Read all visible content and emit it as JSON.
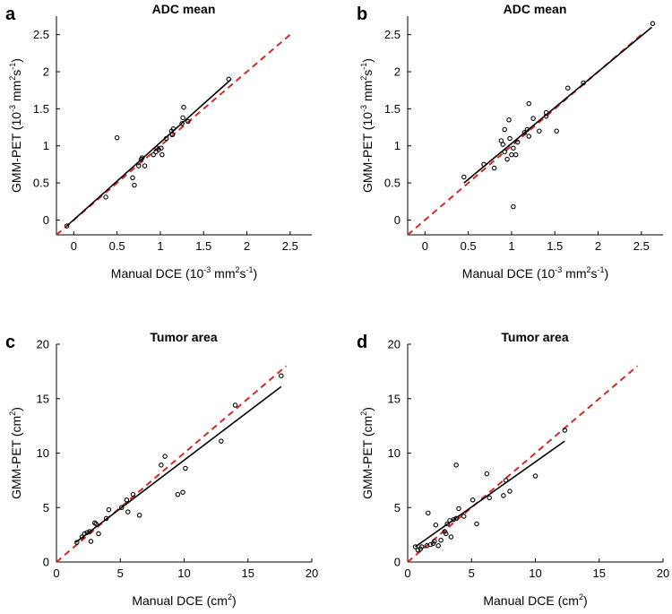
{
  "colors": {
    "identity": "#d62728",
    "fit": "#000000",
    "marker": "#000000",
    "axis": "#000000"
  },
  "chart_data": [
    {
      "panel": "a",
      "type": "scatter",
      "title": "ADC mean",
      "xlabel": {
        "main": "Manual DCE (10",
        "sup1": "-3",
        "mid": " mm",
        "sup2": "2",
        "tail": "s",
        "sup3": "-1",
        "end": ")"
      },
      "ylabel": {
        "main": "GMM-PET (10",
        "sup1": "-3",
        "mid": " mm",
        "sup2": "2",
        "tail": "s",
        "sup3": "-1",
        "end": ")"
      },
      "xlim": [
        -0.2,
        2.75
      ],
      "ylim": [
        -0.2,
        2.75
      ],
      "xticks": [
        0,
        0.5,
        1,
        1.5,
        2,
        2.5
      ],
      "xtick_labels": [
        "0",
        "0.5",
        "1",
        "1.5",
        "2",
        "2.5"
      ],
      "yticks": [
        0,
        0.5,
        1,
        1.5,
        2,
        2.5
      ],
      "ytick_labels": [
        "0",
        "0.5",
        "1",
        "1.5",
        "2",
        "2.5"
      ],
      "identity_line": [
        [
          -0.2,
          -0.2
        ],
        [
          2.5,
          2.5
        ]
      ],
      "fit_line": [
        [
          -0.08,
          -0.08
        ],
        [
          1.82,
          1.9
        ]
      ],
      "points": [
        {
          "x": -0.08,
          "y": -0.08
        },
        {
          "x": 0.37,
          "y": 0.31
        },
        {
          "x": 0.5,
          "y": 1.11
        },
        {
          "x": 0.68,
          "y": 0.57
        },
        {
          "x": 0.7,
          "y": 0.47
        },
        {
          "x": 0.75,
          "y": 0.73
        },
        {
          "x": 0.78,
          "y": 0.82
        },
        {
          "x": 0.79,
          "y": 0.84
        },
        {
          "x": 0.82,
          "y": 0.73
        },
        {
          "x": 0.92,
          "y": 0.88
        },
        {
          "x": 0.95,
          "y": 0.92
        },
        {
          "x": 0.96,
          "y": 0.97
        },
        {
          "x": 0.98,
          "y": 0.95
        },
        {
          "x": 1.01,
          "y": 0.97
        },
        {
          "x": 1.02,
          "y": 0.88
        },
        {
          "x": 1.07,
          "y": 1.1
        },
        {
          "x": 1.13,
          "y": 1.2
        },
        {
          "x": 1.14,
          "y": 1.15
        },
        {
          "x": 1.15,
          "y": 1.23
        },
        {
          "x": 1.25,
          "y": 1.3
        },
        {
          "x": 1.26,
          "y": 1.38
        },
        {
          "x": 1.27,
          "y": 1.52
        },
        {
          "x": 1.32,
          "y": 1.33
        },
        {
          "x": 1.79,
          "y": 1.9
        }
      ]
    },
    {
      "panel": "b",
      "type": "scatter",
      "title": "ADC mean",
      "xlabel": {
        "main": "Manual DCE (10",
        "sup1": "-3",
        "mid": " mm",
        "sup2": "2",
        "tail": "s",
        "sup3": "-1",
        "end": ")"
      },
      "ylabel": {
        "main": "GMM-PET (10",
        "sup1": "-3",
        "mid": " mm",
        "sup2": "2",
        "tail": "s",
        "sup3": "-1",
        "end": ")"
      },
      "xlim": [
        -0.2,
        2.75
      ],
      "ylim": [
        -0.2,
        2.75
      ],
      "xticks": [
        0,
        0.5,
        1,
        1.5,
        2,
        2.5
      ],
      "xtick_labels": [
        "0",
        "0.5",
        "1",
        "1.5",
        "2",
        "2.5"
      ],
      "yticks": [
        0,
        0.5,
        1,
        1.5,
        2,
        2.5
      ],
      "ytick_labels": [
        "0",
        "0.5",
        "1",
        "1.5",
        "2",
        "2.5"
      ],
      "identity_line": [
        [
          -0.2,
          -0.2
        ],
        [
          2.5,
          2.5
        ]
      ],
      "fit_line": [
        [
          0.45,
          0.5
        ],
        [
          2.62,
          2.6
        ]
      ],
      "points": [
        {
          "x": 0.45,
          "y": 0.58
        },
        {
          "x": 0.68,
          "y": 0.75
        },
        {
          "x": 0.8,
          "y": 0.7
        },
        {
          "x": 0.88,
          "y": 1.07
        },
        {
          "x": 0.9,
          "y": 1.02
        },
        {
          "x": 0.92,
          "y": 0.92
        },
        {
          "x": 0.92,
          "y": 1.22
        },
        {
          "x": 0.95,
          "y": 0.82
        },
        {
          "x": 0.97,
          "y": 1.35
        },
        {
          "x": 0.98,
          "y": 1.1
        },
        {
          "x": 1.0,
          "y": 0.88
        },
        {
          "x": 1.02,
          "y": 0.97
        },
        {
          "x": 1.02,
          "y": 0.18
        },
        {
          "x": 1.05,
          "y": 0.88
        },
        {
          "x": 1.07,
          "y": 1.05
        },
        {
          "x": 1.15,
          "y": 1.18
        },
        {
          "x": 1.18,
          "y": 1.22
        },
        {
          "x": 1.2,
          "y": 1.57
        },
        {
          "x": 1.2,
          "y": 1.13
        },
        {
          "x": 1.25,
          "y": 1.37
        },
        {
          "x": 1.32,
          "y": 1.2
        },
        {
          "x": 1.4,
          "y": 1.4
        },
        {
          "x": 1.4,
          "y": 1.45
        },
        {
          "x": 1.52,
          "y": 1.2
        },
        {
          "x": 1.65,
          "y": 1.78
        },
        {
          "x": 1.83,
          "y": 1.85
        },
        {
          "x": 2.63,
          "y": 2.65
        }
      ]
    },
    {
      "panel": "c",
      "type": "scatter",
      "title": "Tumor area",
      "xlabel": {
        "main": "Manual DCE (cm",
        "sup1": "2",
        "end": ")"
      },
      "ylabel": {
        "main": "GMM-PET (cm",
        "sup1": "2",
        "end": ")"
      },
      "xlim": [
        0,
        20
      ],
      "ylim": [
        0,
        20
      ],
      "xticks": [
        0,
        5,
        10,
        15,
        20
      ],
      "xtick_labels": [
        "0",
        "5",
        "10",
        "15",
        "20"
      ],
      "yticks": [
        0,
        5,
        10,
        15,
        20
      ],
      "ytick_labels": [
        "0",
        "5",
        "10",
        "15",
        "20"
      ],
      "identity_line": [
        [
          0,
          0
        ],
        [
          18,
          18
        ]
      ],
      "fit_line": [
        [
          1.5,
          1.8
        ],
        [
          17.6,
          16.1
        ]
      ],
      "points": [
        {
          "x": 1.6,
          "y": 1.8
        },
        {
          "x": 2.0,
          "y": 2.3
        },
        {
          "x": 2.2,
          "y": 2.6
        },
        {
          "x": 2.4,
          "y": 2.7
        },
        {
          "x": 2.6,
          "y": 2.8
        },
        {
          "x": 2.7,
          "y": 1.9
        },
        {
          "x": 3.0,
          "y": 3.6
        },
        {
          "x": 3.1,
          "y": 3.5
        },
        {
          "x": 3.3,
          "y": 2.6
        },
        {
          "x": 3.9,
          "y": 4.0
        },
        {
          "x": 4.1,
          "y": 4.8
        },
        {
          "x": 5.1,
          "y": 5.0
        },
        {
          "x": 5.5,
          "y": 5.7
        },
        {
          "x": 5.6,
          "y": 4.6
        },
        {
          "x": 6.0,
          "y": 6.2
        },
        {
          "x": 6.5,
          "y": 4.3
        },
        {
          "x": 8.2,
          "y": 8.9
        },
        {
          "x": 8.5,
          "y": 9.7
        },
        {
          "x": 9.5,
          "y": 6.2
        },
        {
          "x": 9.9,
          "y": 6.4
        },
        {
          "x": 10.1,
          "y": 8.6
        },
        {
          "x": 12.9,
          "y": 11.1
        },
        {
          "x": 14.0,
          "y": 14.4
        },
        {
          "x": 17.6,
          "y": 17.1
        }
      ]
    },
    {
      "panel": "d",
      "type": "scatter",
      "title": "Tumor area",
      "xlabel": {
        "main": "Manual DCE (cm",
        "sup1": "2",
        "end": ")"
      },
      "ylabel": {
        "main": "GMM-PET (cm",
        "sup1": "2",
        "end": ")"
      },
      "xlim": [
        0,
        20
      ],
      "ylim": [
        0,
        20
      ],
      "xticks": [
        0,
        5,
        10,
        15,
        20
      ],
      "xtick_labels": [
        "0",
        "5",
        "10",
        "15",
        "20"
      ],
      "yticks": [
        0,
        5,
        10,
        15,
        20
      ],
      "ytick_labels": [
        "0",
        "5",
        "10",
        "15",
        "20"
      ],
      "identity_line": [
        [
          0,
          0
        ],
        [
          18,
          18
        ]
      ],
      "fit_line": [
        [
          0.6,
          1.4
        ],
        [
          12.3,
          11.1
        ]
      ],
      "points": [
        {
          "x": 0.6,
          "y": 1.4
        },
        {
          "x": 0.8,
          "y": 1.1
        },
        {
          "x": 1.0,
          "y": 1.2
        },
        {
          "x": 1.1,
          "y": 1.4
        },
        {
          "x": 1.5,
          "y": 1.5
        },
        {
          "x": 1.6,
          "y": 4.5
        },
        {
          "x": 1.8,
          "y": 1.6
        },
        {
          "x": 2.0,
          "y": 1.7
        },
        {
          "x": 2.1,
          "y": 1.9
        },
        {
          "x": 2.2,
          "y": 3.4
        },
        {
          "x": 2.4,
          "y": 1.5
        },
        {
          "x": 2.6,
          "y": 2.0
        },
        {
          "x": 2.9,
          "y": 2.8
        },
        {
          "x": 3.0,
          "y": 2.6
        },
        {
          "x": 3.1,
          "y": 3.5
        },
        {
          "x": 3.3,
          "y": 3.8
        },
        {
          "x": 3.4,
          "y": 2.3
        },
        {
          "x": 3.6,
          "y": 3.9
        },
        {
          "x": 3.8,
          "y": 4.0
        },
        {
          "x": 3.8,
          "y": 8.9
        },
        {
          "x": 4.0,
          "y": 4.9
        },
        {
          "x": 4.4,
          "y": 4.2
        },
        {
          "x": 5.1,
          "y": 5.7
        },
        {
          "x": 5.4,
          "y": 3.5
        },
        {
          "x": 6.2,
          "y": 8.1
        },
        {
          "x": 6.4,
          "y": 5.9
        },
        {
          "x": 7.5,
          "y": 6.1
        },
        {
          "x": 7.7,
          "y": 7.5
        },
        {
          "x": 8.0,
          "y": 6.5
        },
        {
          "x": 10.0,
          "y": 7.9
        },
        {
          "x": 12.3,
          "y": 12.1
        }
      ]
    }
  ]
}
